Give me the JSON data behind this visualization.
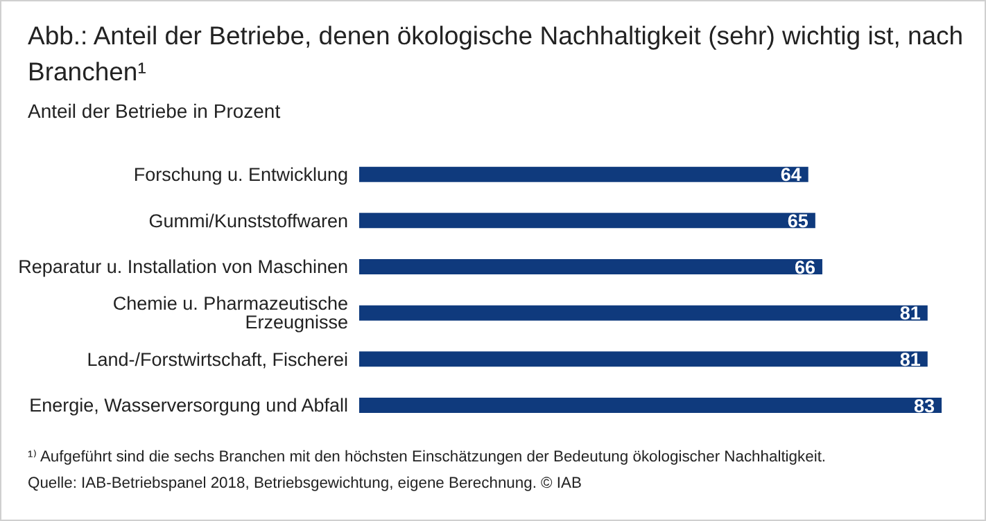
{
  "chart_data": {
    "type": "bar",
    "orientation": "horizontal",
    "title": "Abb.: Anteil der Betriebe, denen ökologische Nachhaltigkeit (sehr) wichtig ist, nach Branchen¹",
    "subtitle": "Anteil der Betriebe in Prozent",
    "categories": [
      "Forschung u. Entwicklung",
      "Gummi/Kunststoffwaren",
      "Reparatur u. Installation von Maschinen",
      "Chemie u. Pharmazeutische Erzeugnisse",
      "Land-/Forstwirtschaft, Fischerei",
      "Energie, Wasserversorgung und Abfall"
    ],
    "values": [
      64,
      65,
      66,
      81,
      81,
      83
    ],
    "color": "#0f3a7d",
    "data_labels": true,
    "annotations": [
      "¹⁾ Aufgeführt sind die sechs Branchen mit den höchsten Einschätzungen der Bedeutung ökologischer Nachhaltigkeit.",
      "Quelle: IAB-Betriebspanel 2018, Betriebsgewichtung, eigene Berechnung. © IAB"
    ]
  }
}
